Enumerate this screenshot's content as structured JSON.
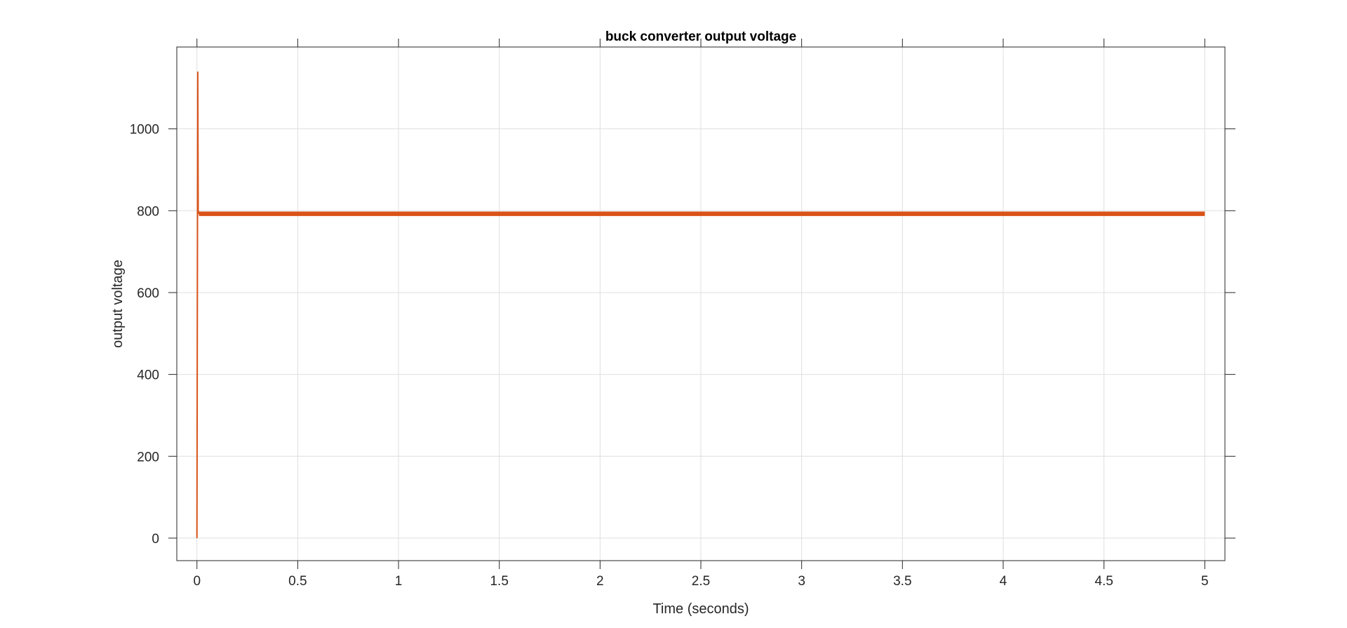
{
  "chart_data": {
    "type": "line",
    "title": "buck converter output voltage",
    "xlabel": "Time (seconds)",
    "ylabel": "output voltage",
    "xlim": [
      -0.1,
      5.1
    ],
    "ylim": [
      -55,
      1200
    ],
    "xticks": [
      0,
      0.5,
      1,
      1.5,
      2,
      2.5,
      3,
      3.5,
      4,
      4.5,
      5
    ],
    "xtick_labels": [
      "0",
      "0.5",
      "1",
      "1.5",
      "2",
      "2.5",
      "3",
      "3.5",
      "4",
      "4.5",
      "5"
    ],
    "yticks": [
      0,
      200,
      400,
      600,
      800,
      1000
    ],
    "ytick_labels": [
      "0",
      "200",
      "400",
      "600",
      "800",
      "1000"
    ],
    "grid": true,
    "series": [
      {
        "color": "#D95319",
        "x": [
          0,
          0.004,
          0.006,
          0.01,
          0.02,
          5
        ],
        "y": [
          0,
          1140,
          800,
          793,
          793,
          793
        ],
        "ripple": [
          787,
          798
        ]
      }
    ]
  }
}
